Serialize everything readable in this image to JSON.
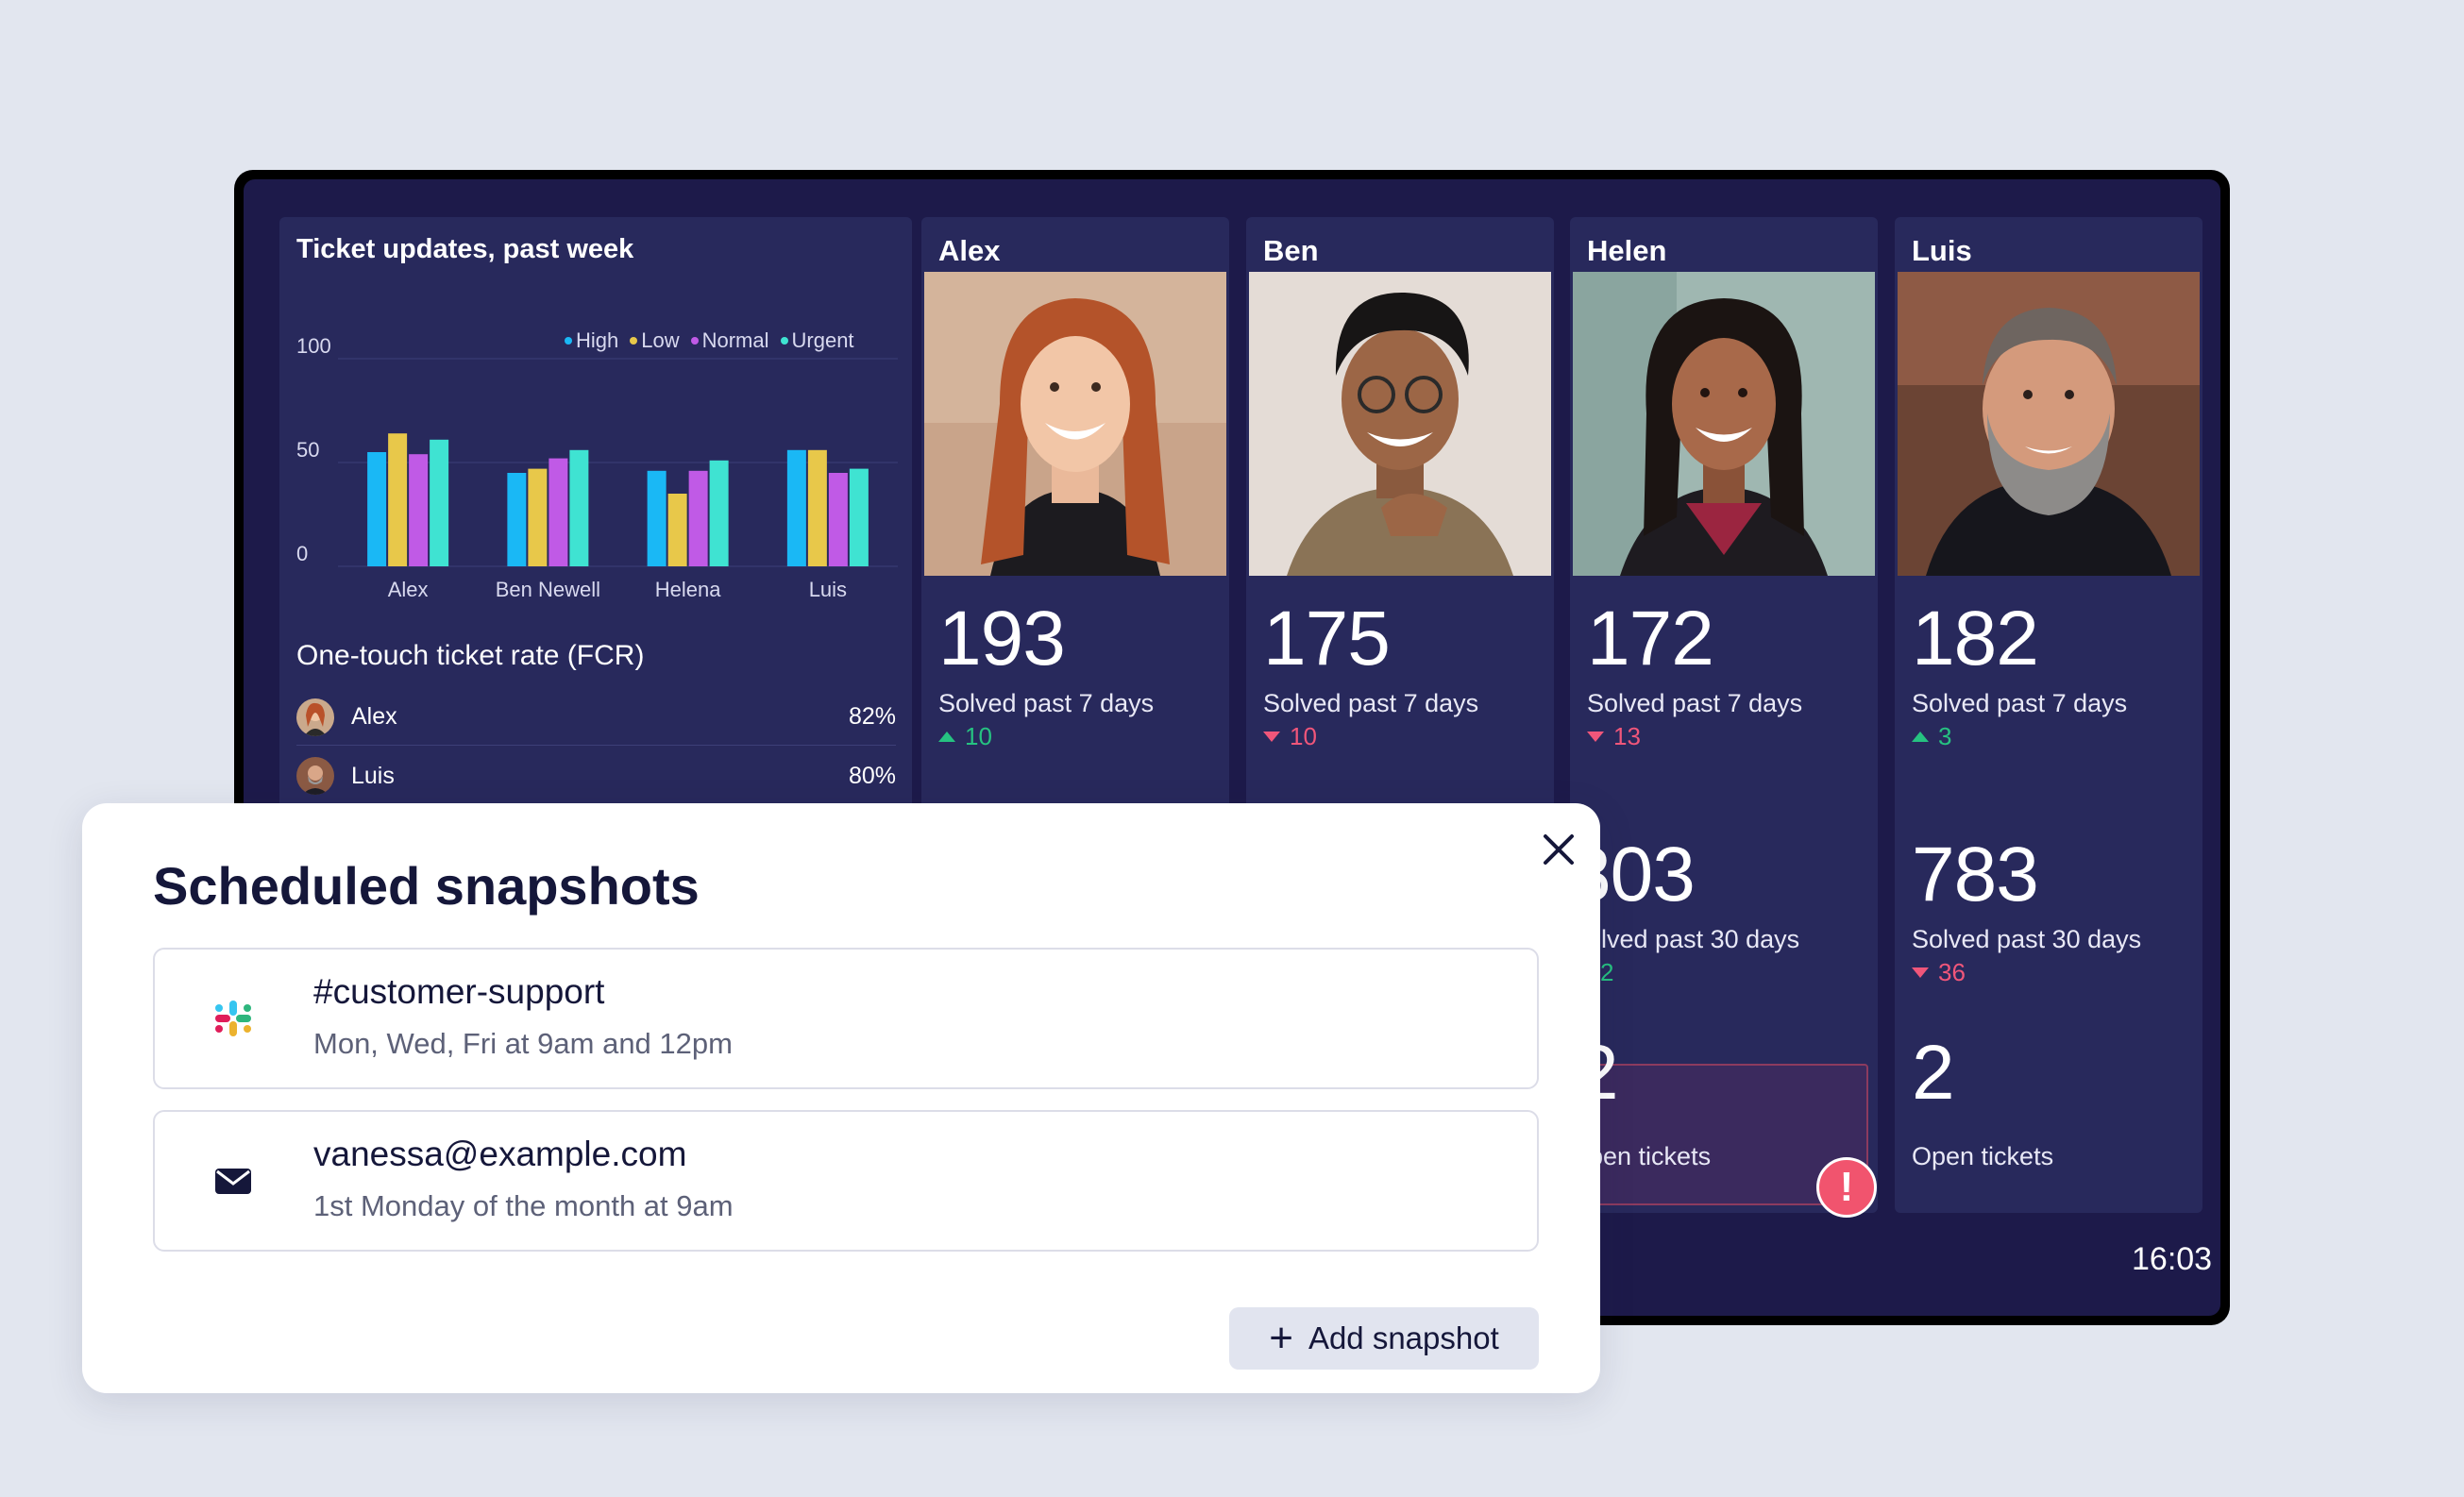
{
  "dashboard": {
    "chart_panel": {
      "title": "Ticket updates, past week",
      "legend": [
        {
          "label": "High",
          "color": "#1ab8f5"
        },
        {
          "label": "Low",
          "color": "#e8c84a"
        },
        {
          "label": "Normal",
          "color": "#c05ae6"
        },
        {
          "label": "Urgent",
          "color": "#3fe3d2"
        }
      ]
    },
    "fcr": {
      "title": "One-touch ticket rate (FCR)",
      "rows": [
        {
          "name": "Alex",
          "pct": "82%"
        },
        {
          "name": "Luis",
          "pct": "80%"
        }
      ]
    },
    "agents": [
      {
        "name": "Alex",
        "solved7": "193",
        "solved7_label": "Solved past 7 days",
        "delta7": "10",
        "delta7_dir": "up"
      },
      {
        "name": "Ben",
        "solved7": "175",
        "solved7_label": "Solved past 7 days",
        "delta7": "10",
        "delta7_dir": "down"
      },
      {
        "name": "Helen",
        "solved7": "172",
        "solved7_label": "Solved past 7 days",
        "delta7": "13",
        "delta7_dir": "down",
        "solved30": "803",
        "solved30_label": "olved past 30 days",
        "delta30": "2",
        "open": "2",
        "open_label": "pen tickets"
      },
      {
        "name": "Luis",
        "solved7": "182",
        "solved7_label": "Solved past 7 days",
        "delta7": "3",
        "delta7_dir": "up",
        "solved30": "783",
        "solved30_label": "Solved past 30 days",
        "delta30": "36",
        "delta30_dir": "down",
        "open": "2",
        "open_label": "Open tickets"
      }
    ],
    "alert_badge": "!",
    "clock": "16:03"
  },
  "chart_data": {
    "type": "bar",
    "categories": [
      "Alex",
      "Ben Newell",
      "Helena",
      "Luis"
    ],
    "series": [
      {
        "name": "High",
        "values": [
          55,
          45,
          46,
          56
        ]
      },
      {
        "name": "Low",
        "values": [
          64,
          47,
          35,
          56
        ]
      },
      {
        "name": "Normal",
        "values": [
          54,
          52,
          46,
          45
        ]
      },
      {
        "name": "Urgent",
        "values": [
          61,
          56,
          51,
          47
        ]
      }
    ],
    "yticks": [
      "100",
      "50",
      "0"
    ],
    "ylim": [
      0,
      100
    ],
    "colors": [
      "#1ab8f5",
      "#e8c84a",
      "#c05ae6",
      "#3fe3d2"
    ],
    "legend": "top-right"
  },
  "modal": {
    "title": "Scheduled snapshots",
    "snapshots": [
      {
        "title": "#customer-support",
        "schedule": "Mon, Wed, Fri at 9am and 12pm",
        "icon": "slack-icon"
      },
      {
        "title": "vanessa@example.com",
        "schedule": "1st Monday of the month at 9am",
        "icon": "envelope-icon"
      }
    ],
    "add_label": "Add snapshot",
    "add_icon": "+"
  }
}
